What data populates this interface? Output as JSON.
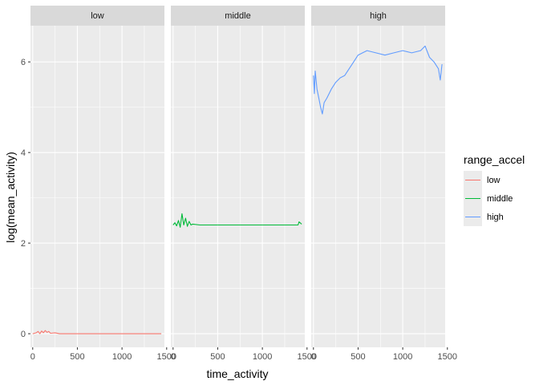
{
  "chart_data": {
    "type": "line",
    "facet_by": "range_accel",
    "panels": [
      "low",
      "middle",
      "high"
    ],
    "xlabel": "time_activity",
    "ylabel": "log(mean_activity)",
    "xlim": [
      -25,
      1475
    ],
    "ylim": [
      -0.3,
      6.8
    ],
    "x_ticks": [
      0,
      500,
      1000,
      1500
    ],
    "y_ticks": [
      0,
      2,
      4,
      6
    ],
    "grid": true,
    "legend": {
      "title": "range_accel",
      "placement": "right",
      "entries": [
        "low",
        "middle",
        "high"
      ]
    },
    "colors": {
      "low": "#F8766D",
      "middle": "#00BA38",
      "high": "#619CFF"
    },
    "series": [
      {
        "name": "low",
        "x": [
          0,
          40,
          60,
          80,
          100,
          120,
          140,
          160,
          180,
          200,
          250,
          300,
          400,
          600,
          800,
          1000,
          1200,
          1440
        ],
        "y": [
          0.0,
          0.02,
          0.05,
          0.0,
          0.06,
          0.02,
          0.07,
          0.03,
          0.05,
          0.01,
          0.02,
          0.0,
          0.0,
          0.0,
          0.0,
          0.0,
          0.0,
          0.0
        ]
      },
      {
        "name": "middle",
        "x": [
          0,
          20,
          40,
          60,
          80,
          100,
          120,
          140,
          160,
          180,
          200,
          220,
          300,
          600,
          900,
          1200,
          1400,
          1410,
          1440
        ],
        "y": [
          2.4,
          2.45,
          2.38,
          2.5,
          2.35,
          2.65,
          2.4,
          2.55,
          2.37,
          2.48,
          2.4,
          2.42,
          2.4,
          2.4,
          2.4,
          2.4,
          2.4,
          2.47,
          2.42
        ]
      },
      {
        "name": "high",
        "x": [
          0,
          10,
          20,
          40,
          60,
          80,
          100,
          120,
          150,
          200,
          250,
          300,
          350,
          400,
          450,
          500,
          550,
          600,
          700,
          800,
          900,
          1000,
          1100,
          1200,
          1250,
          1300,
          1350,
          1400,
          1420,
          1440
        ],
        "y": [
          5.7,
          5.3,
          5.8,
          5.4,
          5.2,
          5.0,
          4.85,
          5.1,
          5.2,
          5.4,
          5.55,
          5.65,
          5.7,
          5.85,
          6.0,
          6.15,
          6.2,
          6.25,
          6.2,
          6.15,
          6.2,
          6.25,
          6.2,
          6.25,
          6.35,
          6.1,
          6.0,
          5.85,
          5.6,
          5.95
        ]
      }
    ]
  }
}
